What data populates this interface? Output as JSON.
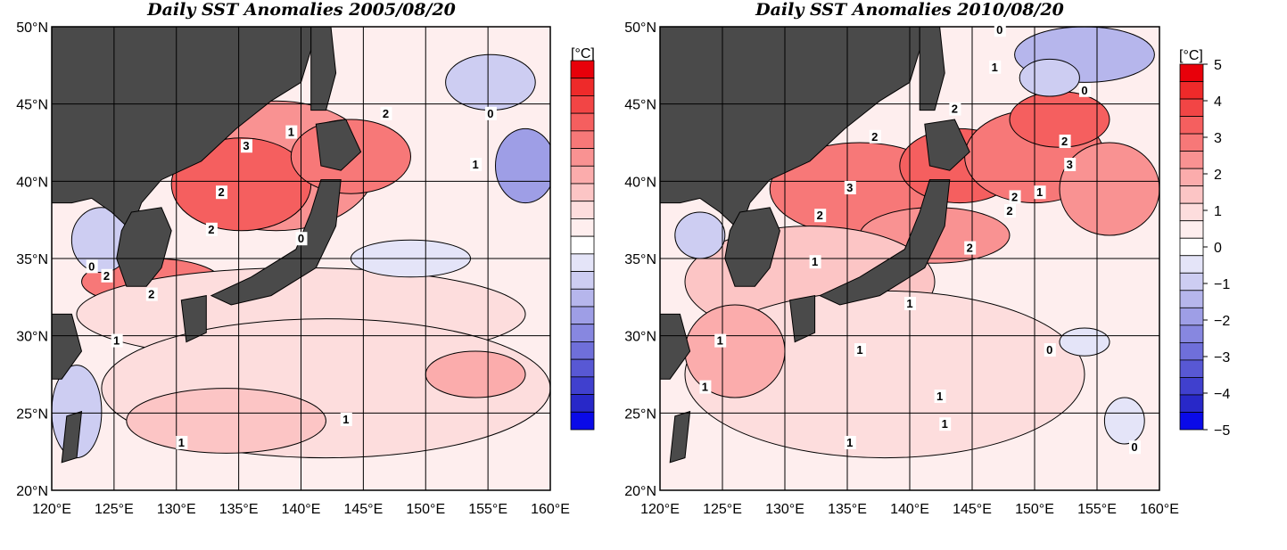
{
  "maps": [
    {
      "id": "left",
      "title": "Daily SST Anomalies 2005/08/20",
      "contour_labels": [
        "3",
        "2",
        "2",
        "2",
        "2",
        "2",
        "1",
        "1",
        "0",
        "0",
        "0",
        "1",
        "1",
        "1"
      ],
      "has_colorbar_ticks": false
    },
    {
      "id": "right",
      "title": "Daily SST Anomalies 2010/08/20",
      "contour_labels": [
        "0",
        "1",
        "0",
        "2",
        "2",
        "2",
        "2",
        "3",
        "3",
        "2",
        "1",
        "2",
        "2",
        "1",
        "1",
        "1",
        "1",
        "1",
        "0",
        "1",
        "1",
        "1",
        "0"
      ],
      "has_colorbar_ticks": true
    }
  ],
  "lat_labels": [
    "50°N",
    "45°N",
    "40°N",
    "35°N",
    "30°N",
    "25°N",
    "20°N"
  ],
  "lon_labels": [
    "120°E",
    "125°E",
    "130°E",
    "135°E",
    "140°E",
    "145°E",
    "150°E",
    "155°E",
    "160°E"
  ],
  "colorbar": {
    "unit": "[°C]",
    "tick_labels": [
      "5",
      "4",
      "3",
      "2",
      "1",
      "0",
      "−1",
      "−2",
      "−3",
      "−4",
      "−5"
    ],
    "colors": [
      "#e8000a",
      "#ee2a2a",
      "#f24545",
      "#f55f5f",
      "#f77878",
      "#f99292",
      "#fbacac",
      "#fcc5c5",
      "#fddddd",
      "#feeeee",
      "#ffffff",
      "#e4e4f8",
      "#cdcdf2",
      "#b6b6ec",
      "#9e9ee6",
      "#8787e0",
      "#6f6fda",
      "#5858d4",
      "#4040ce",
      "#2828c8",
      "#0a0ae8"
    ]
  },
  "land_color": "#4a4a4a"
}
